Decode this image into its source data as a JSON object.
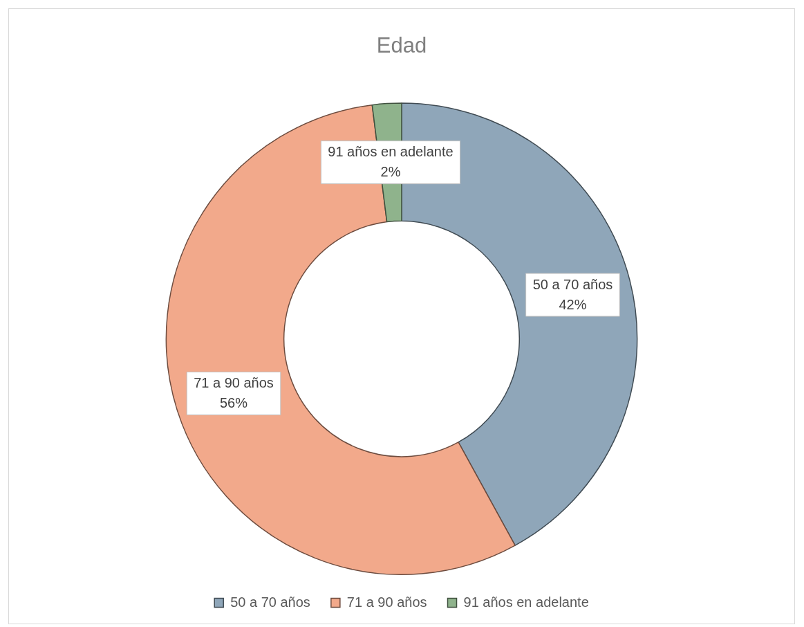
{
  "chart_data": {
    "type": "donut",
    "title": "Edad",
    "categories": [
      "50 a 70 años",
      "71 a 90 años",
      "91 años en adelante"
    ],
    "values": [
      42,
      56,
      2
    ],
    "colors": [
      "#8fa6b9",
      "#f2a98b",
      "#8fb38c"
    ],
    "value_labels": [
      "42%",
      "56%",
      "2%"
    ],
    "legend": "bottom"
  }
}
